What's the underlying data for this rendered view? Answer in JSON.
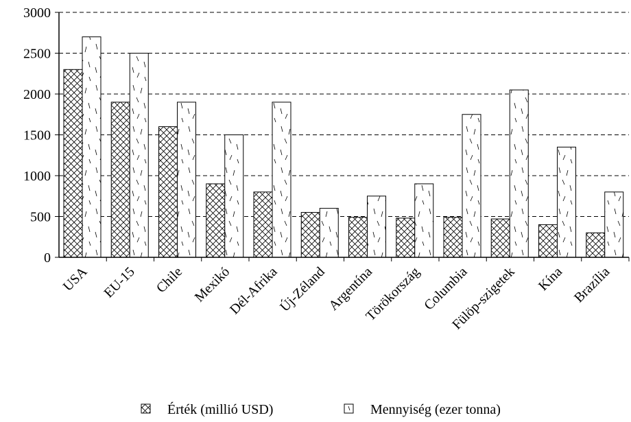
{
  "chart_data": {
    "type": "bar",
    "categories": [
      "USA",
      "EU-15",
      "Chile",
      "Mexikó",
      "Dél-Afrika",
      "Új-Zéland",
      "Argentína",
      "Törökország",
      "Columbia",
      "Fülöp-szigetek",
      "Kína",
      "Brazília"
    ],
    "series": [
      {
        "name": "Érték (millió USD)",
        "hatch": "crosshatch",
        "values": [
          2300,
          1900,
          1600,
          900,
          800,
          550,
          490,
          480,
          490,
          470,
          400,
          300
        ]
      },
      {
        "name": "Mennyiség (ezer tonna)",
        "hatch": "dashes",
        "values": [
          2700,
          2500,
          1900,
          1500,
          1900,
          600,
          750,
          900,
          1750,
          2050,
          1350,
          800
        ]
      }
    ],
    "ylim": [
      0,
      3000
    ],
    "yticks": [
      0,
      500,
      1000,
      1500,
      2000,
      2500,
      3000
    ],
    "grid": true
  }
}
